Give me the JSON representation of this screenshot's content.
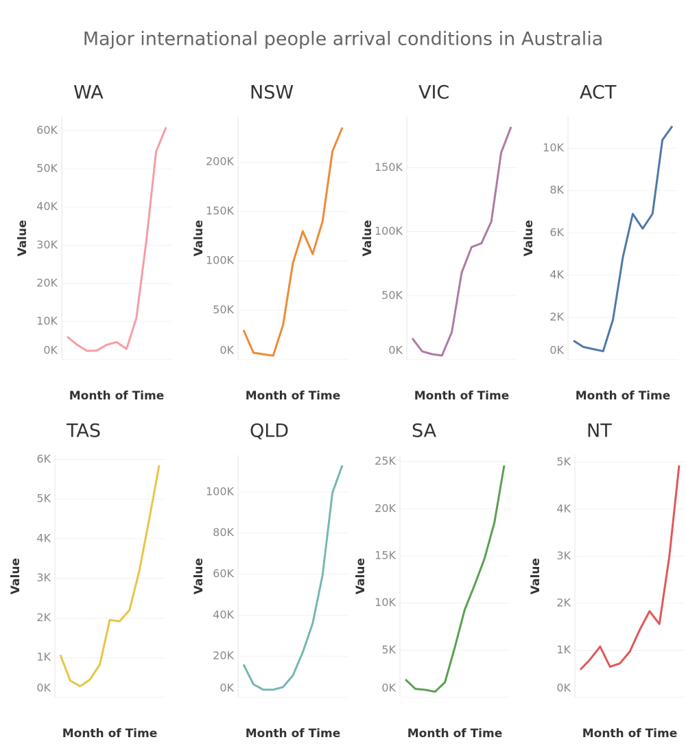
{
  "title": "Major international people arrival conditions in Australia",
  "chart_data": [
    {
      "type": "line",
      "title": "WA",
      "x_label": "Month of Time",
      "y_label": "Value",
      "color": "#f89ca5",
      "values": [
        6000,
        3900,
        2300,
        2400,
        3900,
        4600,
        2800,
        10900,
        31000,
        54600,
        60900
      ],
      "ylim": [
        0,
        63700
      ],
      "grid": true,
      "yticks": [
        {
          "value": 0,
          "label": "0K"
        },
        {
          "value": 10000,
          "label": "10K"
        },
        {
          "value": 20000,
          "label": "20K"
        },
        {
          "value": 30000,
          "label": "30K"
        },
        {
          "value": 40000,
          "label": "40K"
        },
        {
          "value": 50000,
          "label": "50K"
        },
        {
          "value": 60000,
          "label": "60K"
        }
      ]
    },
    {
      "type": "line",
      "title": "NSW",
      "x_label": "Month of Time",
      "y_label": "Value",
      "color": "#ed8b35",
      "values": [
        30000,
        7000,
        5500,
        4000,
        35000,
        98000,
        130000,
        107000,
        140000,
        211000,
        235000
      ],
      "ylim": [
        0,
        246000
      ],
      "grid": true,
      "yticks": [
        {
          "value": 0,
          "label": "0K"
        },
        {
          "value": 50000,
          "label": "50K"
        },
        {
          "value": 100000,
          "label": "100K"
        },
        {
          "value": 150000,
          "label": "150K"
        },
        {
          "value": 200000,
          "label": "200K"
        }
      ]
    },
    {
      "type": "line",
      "title": "VIC",
      "x_label": "Month of Time",
      "y_label": "Value",
      "color": "#b07aa1",
      "values": [
        16700,
        6500,
        4300,
        3200,
        21500,
        68000,
        88000,
        91000,
        108000,
        162000,
        182000
      ],
      "ylim": [
        0,
        190000
      ],
      "grid": true,
      "yticks": [
        {
          "value": 0,
          "label": "0K"
        },
        {
          "value": 50000,
          "label": "50K"
        },
        {
          "value": 100000,
          "label": "100K"
        },
        {
          "value": 150000,
          "label": "150K"
        }
      ]
    },
    {
      "type": "line",
      "title": "ACT",
      "x_label": "Month of Time",
      "y_label": "Value",
      "color": "#4e79a7",
      "values": [
        900,
        600,
        500,
        400,
        1900,
        4850,
        6900,
        6200,
        6900,
        10400,
        11050
      ],
      "ylim": [
        0,
        11500
      ],
      "grid": true,
      "yticks": [
        {
          "value": 0,
          "label": "0K"
        },
        {
          "value": 2000,
          "label": "2K"
        },
        {
          "value": 4000,
          "label": "4K"
        },
        {
          "value": 6000,
          "label": "6K"
        },
        {
          "value": 8000,
          "label": "8K"
        },
        {
          "value": 10000,
          "label": "10K"
        }
      ]
    },
    {
      "type": "line",
      "title": "TAS",
      "x_label": "Month of Time",
      "y_label": "Value",
      "color": "#e8c547",
      "values": [
        1070,
        420,
        280,
        450,
        830,
        1950,
        1920,
        2200,
        3200,
        4500,
        5850
      ],
      "ylim": [
        0,
        6110
      ],
      "grid": true,
      "yticks": [
        {
          "value": 0,
          "label": "0K"
        },
        {
          "value": 1000,
          "label": "1K"
        },
        {
          "value": 2000,
          "label": "2K"
        },
        {
          "value": 3000,
          "label": "3K"
        },
        {
          "value": 4000,
          "label": "4K"
        },
        {
          "value": 5000,
          "label": "5K"
        },
        {
          "value": 6000,
          "label": "6K"
        }
      ]
    },
    {
      "type": "line",
      "title": "QLD",
      "x_label": "Month of Time",
      "y_label": "Value",
      "color": "#76b7b2",
      "values": [
        16000,
        6400,
        3700,
        3700,
        5000,
        10700,
        22000,
        36000,
        59500,
        99700,
        113000
      ],
      "ylim": [
        0,
        118000
      ],
      "grid": true,
      "yticks": [
        {
          "value": 0,
          "label": "0K"
        },
        {
          "value": 20000,
          "label": "20K"
        },
        {
          "value": 40000,
          "label": "40K"
        },
        {
          "value": 60000,
          "label": "60K"
        },
        {
          "value": 80000,
          "label": "80K"
        },
        {
          "value": 100000,
          "label": "100K"
        }
      ]
    },
    {
      "type": "line",
      "title": "SA",
      "x_label": "Month of Time",
      "y_label": "Value",
      "color": "#59a14f",
      "values": [
        1900,
        900,
        800,
        600,
        1600,
        5300,
        9300,
        11900,
        14700,
        18500,
        24600
      ],
      "ylim": [
        0,
        25700
      ],
      "grid": true,
      "yticks": [
        {
          "value": 0,
          "label": "0K"
        },
        {
          "value": 5000,
          "label": "5K"
        },
        {
          "value": 10000,
          "label": "10K"
        },
        {
          "value": 15000,
          "label": "15K"
        },
        {
          "value": 20000,
          "label": "20K"
        },
        {
          "value": 25000,
          "label": "25K"
        }
      ]
    },
    {
      "type": "line",
      "title": "NT",
      "x_label": "Month of Time",
      "y_label": "Value",
      "color": "#e15759",
      "values": [
        590,
        810,
        1080,
        650,
        720,
        970,
        1430,
        1830,
        1560,
        2980,
        4930
      ],
      "ylim": [
        0,
        5150
      ],
      "grid": true,
      "yticks": [
        {
          "value": 0,
          "label": "0K"
        },
        {
          "value": 1000,
          "label": "1K"
        },
        {
          "value": 2000,
          "label": "2K"
        },
        {
          "value": 3000,
          "label": "3K"
        },
        {
          "value": 4000,
          "label": "4K"
        },
        {
          "value": 5000,
          "label": "5K"
        }
      ]
    }
  ]
}
